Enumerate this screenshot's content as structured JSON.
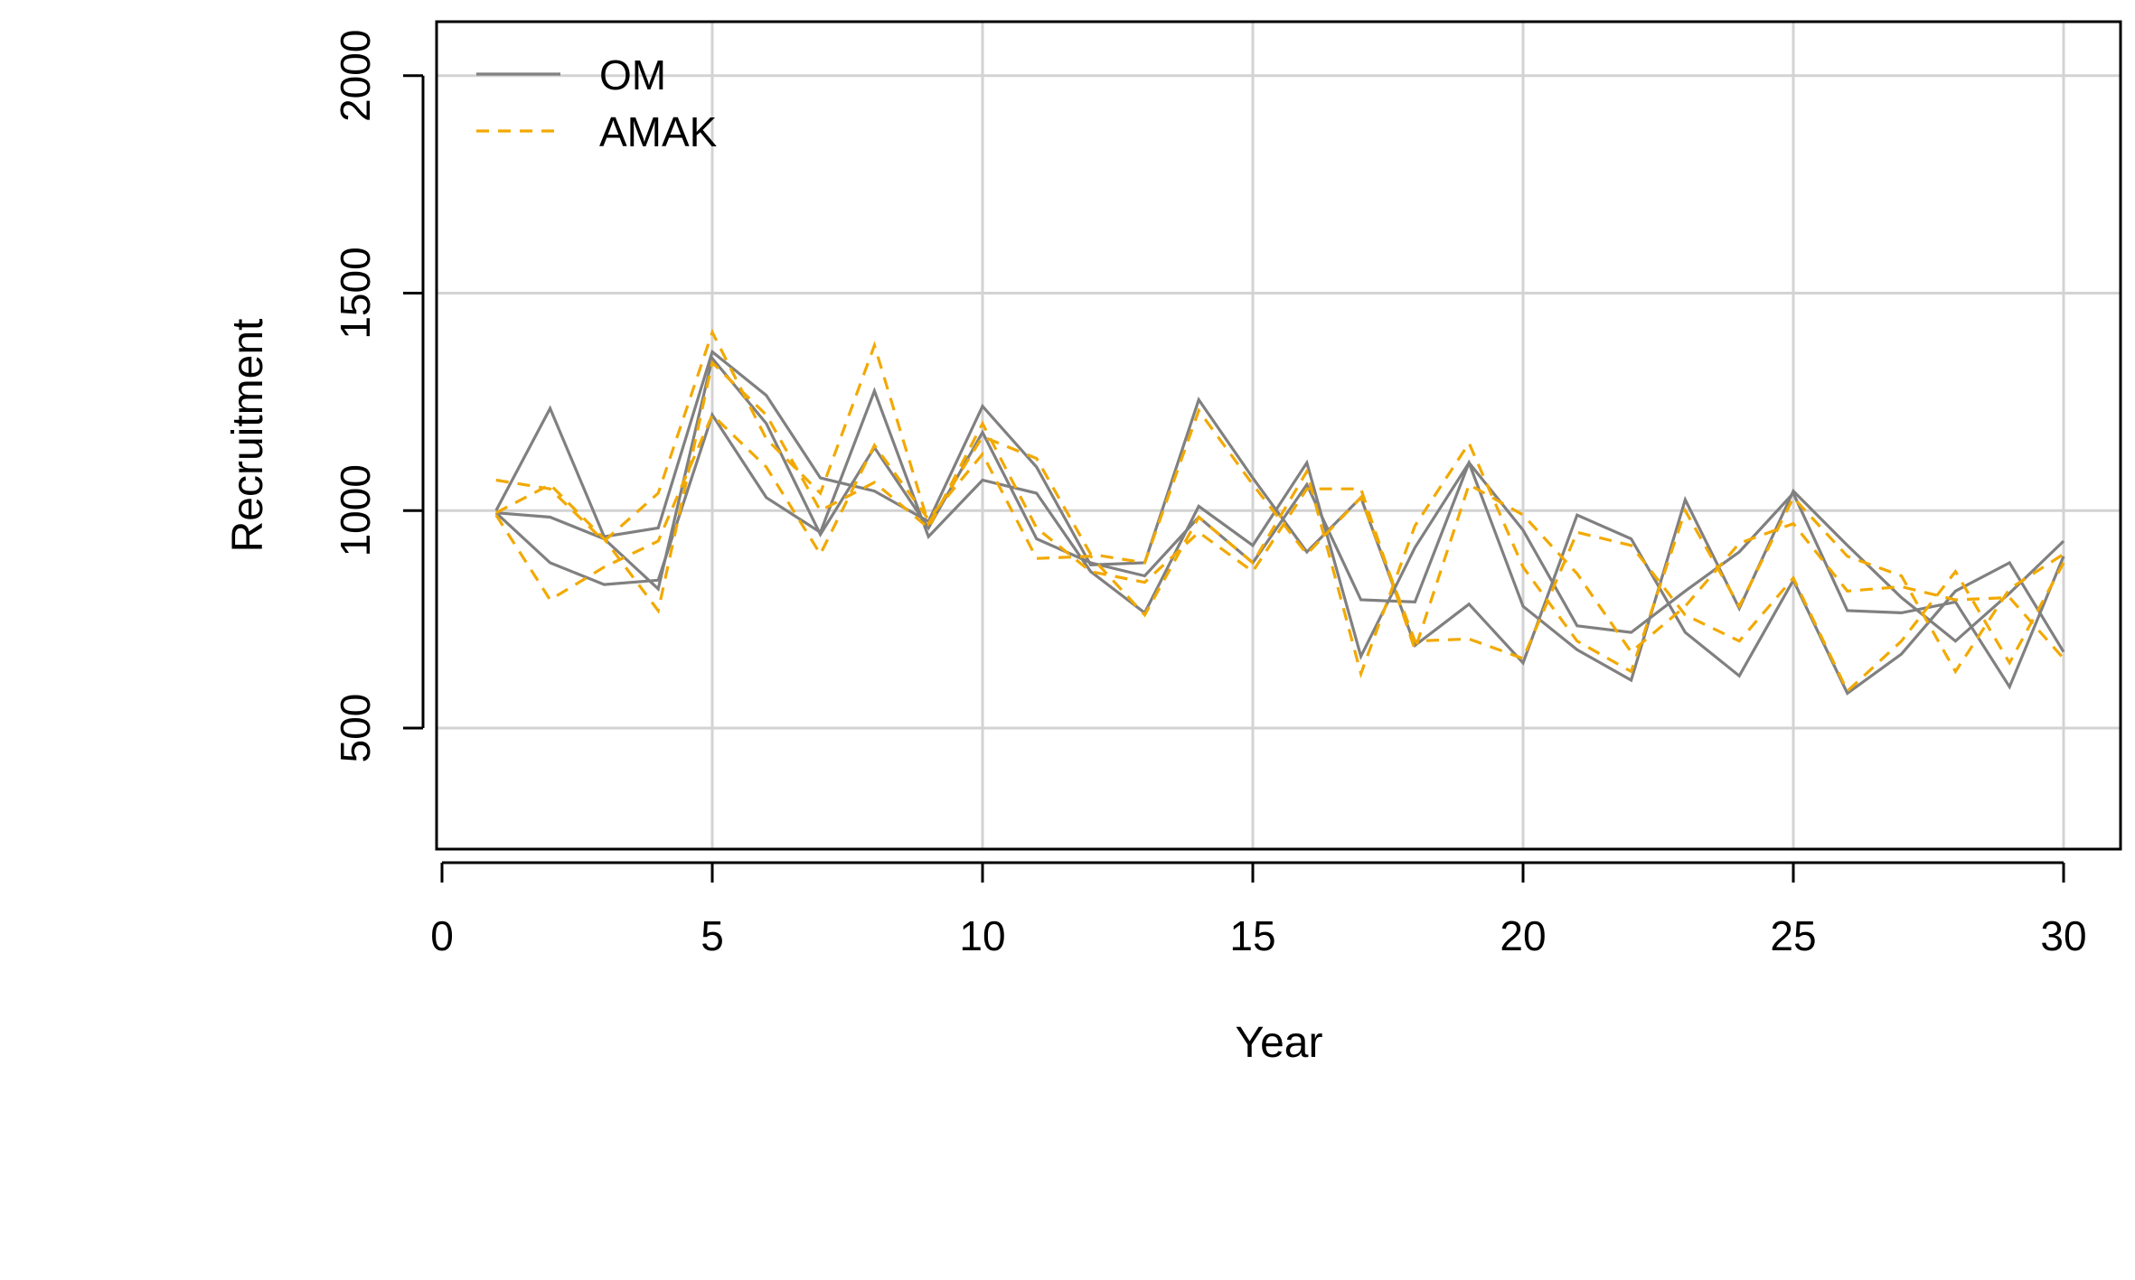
{
  "chart_data": {
    "type": "line",
    "xlabel": "Year",
    "ylabel": "Recruitment",
    "xlim": [
      0,
      30
    ],
    "ylim": [
      220,
      2120
    ],
    "x_ticks": [
      0,
      5,
      10,
      15,
      20,
      25,
      30
    ],
    "y_ticks": [
      500,
      1000,
      1500,
      2000
    ],
    "grid": true,
    "legend": {
      "position": "top-left",
      "entries": [
        {
          "label": "OM",
          "color": "#808080",
          "style": "solid"
        },
        {
          "label": "AMAK",
          "color": "#f2a900",
          "style": "dashed"
        }
      ]
    },
    "x": [
      1,
      2,
      3,
      4,
      5,
      6,
      7,
      8,
      9,
      10,
      11,
      12,
      13,
      14,
      15,
      16,
      17,
      18,
      19,
      20,
      21,
      22,
      23,
      24,
      25,
      26,
      27,
      28,
      29,
      30
    ],
    "series": [
      {
        "group": "OM",
        "color": "#808080",
        "style": "solid",
        "values": [
          1000,
          1235,
          940,
          960,
          1365,
          1265,
          1075,
          1045,
          975,
          1240,
          1100,
          875,
          880,
          1255,
          1075,
          905,
          1030,
          690,
          785,
          650,
          990,
          935,
          720,
          620,
          840,
          580,
          670,
          815,
          880,
          675
        ]
      },
      {
        "group": "OM",
        "color": "#808080",
        "style": "solid",
        "values": [
          995,
          880,
          830,
          840,
          1220,
          1030,
          950,
          1275,
          940,
          1070,
          1040,
          860,
          765,
          1010,
          920,
          1110,
          665,
          915,
          1110,
          780,
          680,
          610,
          1025,
          775,
          1045,
          920,
          800,
          700,
          810,
          930
        ]
      },
      {
        "group": "OM",
        "color": "#808080",
        "style": "solid",
        "values": [
          995,
          985,
          935,
          820,
          1350,
          1200,
          945,
          1145,
          960,
          1180,
          935,
          880,
          850,
          985,
          880,
          1060,
          795,
          790,
          1110,
          955,
          735,
          720,
          815,
          905,
          1040,
          770,
          765,
          790,
          595,
          895
        ]
      },
      {
        "group": "AMAK",
        "color": "#f2a900",
        "style": "dashed",
        "values": [
          1070,
          1050,
          930,
          1040,
          1410,
          1165,
          1040,
          1380,
          970,
          1170,
          1120,
          900,
          880,
          1230,
          1060,
          900,
          1030,
          700,
          705,
          660,
          950,
          920,
          760,
          700,
          845,
          585,
          700,
          860,
          650,
          880
        ]
      },
      {
        "group": "AMAK",
        "color": "#f2a900",
        "style": "dashed",
        "values": [
          990,
          795,
          870,
          930,
          1220,
          1100,
          900,
          1150,
          980,
          1130,
          890,
          895,
          760,
          985,
          880,
          1090,
          625,
          965,
          1155,
          870,
          700,
          630,
          1000,
          780,
          1030,
          895,
          850,
          630,
          820,
          900
        ]
      },
      {
        "group": "AMAK",
        "color": "#f2a900",
        "style": "dashed",
        "values": [
          995,
          1060,
          935,
          770,
          1340,
          1220,
          1000,
          1065,
          960,
          1200,
          960,
          860,
          835,
          950,
          860,
          1050,
          1050,
          680,
          1060,
          990,
          855,
          675,
          780,
          925,
          970,
          815,
          825,
          795,
          800,
          660
        ]
      }
    ]
  }
}
